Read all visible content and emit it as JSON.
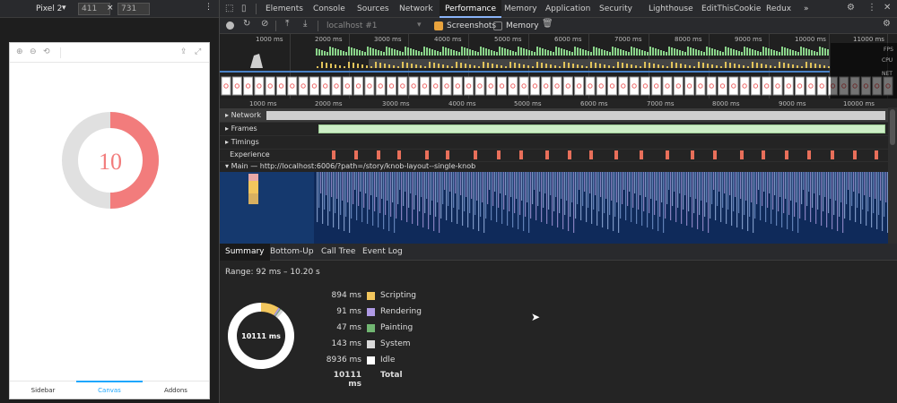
{
  "device": {
    "name": "Pixel 2",
    "width": "411",
    "x": "×",
    "height": "731"
  },
  "phone": {
    "donut_value": "10",
    "nav": [
      "Sidebar",
      "Canvas",
      "Addons"
    ],
    "tools": [
      "⊕",
      "⊖",
      "⟲",
      "⇪",
      "⤢"
    ]
  },
  "tabs": [
    "Elements",
    "Console",
    "Sources",
    "Network",
    "Performance",
    "Memory",
    "Application",
    "Security",
    "Lighthouse",
    "EditThisCookie",
    "Redux",
    "»"
  ],
  "toolbar": {
    "url": "localhost #1",
    "screenshots": "Screenshots",
    "memory": "Memory"
  },
  "overview": {
    "ticks": [
      "1000 ms",
      "2000 ms",
      "3000 ms",
      "4000 ms",
      "5000 ms",
      "6000 ms",
      "7000 ms",
      "8000 ms",
      "9000 ms",
      "10000 ms",
      "11000 ms"
    ],
    "labels": {
      "fps": "FPS",
      "cpu": "CPU",
      "net": "NET"
    }
  },
  "ruler": [
    "1000 ms",
    "2000 ms",
    "3000 ms",
    "4000 ms",
    "5000 ms",
    "6000 ms",
    "7000 ms",
    "8000 ms",
    "9000 ms",
    "10000 ms"
  ],
  "tracks": {
    "network": "Network",
    "frames": "Frames",
    "timings": "Timings",
    "experience": "Experience",
    "main": "Main — http://localhost:6006/?path=/story/knob-layout--single-knob"
  },
  "bottom_tabs": [
    "Summary",
    "Bottom-Up",
    "Call Tree",
    "Event Log"
  ],
  "summary": {
    "range": "Range: 92 ms – 10.20 s",
    "donut_label": "10111 ms",
    "rows": [
      {
        "value": "894 ms",
        "label": "Scripting",
        "color": "#f2c65d",
        "ms": 894
      },
      {
        "value": "91 ms",
        "label": "Rendering",
        "color": "#af9ae5",
        "ms": 91
      },
      {
        "value": "47 ms",
        "label": "Painting",
        "color": "#71b672",
        "ms": 47
      },
      {
        "value": "143 ms",
        "label": "System",
        "color": "#d9d9d9",
        "ms": 143
      },
      {
        "value": "8936 ms",
        "label": "Idle",
        "color": "#ffffff",
        "ms": 8936
      }
    ],
    "total_value": "10111 ms",
    "total_label": "Total"
  },
  "colors": {
    "accent": "#8ab4f8",
    "donut_red": "#f27c7c",
    "donut_gray": "#e0e0e0"
  }
}
